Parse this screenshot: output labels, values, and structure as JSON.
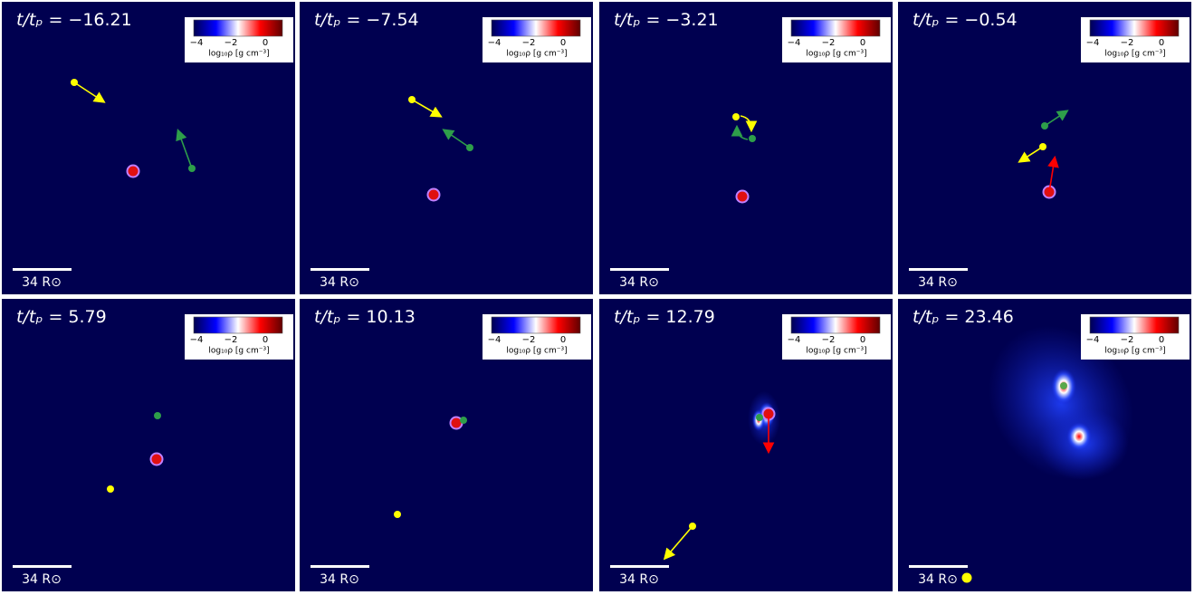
{
  "figure": {
    "time_variable": "t/tₚ =",
    "panels": [
      {
        "time": "−16.21"
      },
      {
        "time": "−7.54"
      },
      {
        "time": "−3.21"
      },
      {
        "time": "−0.54"
      },
      {
        "time": "5.79"
      },
      {
        "time": "10.13"
      },
      {
        "time": "12.79"
      },
      {
        "time": "23.46"
      }
    ],
    "colorbar": {
      "ticks": [
        "−4",
        "−2",
        "0"
      ],
      "label": "log₁₀ρ [g cm⁻³]"
    },
    "scale_bar": "34 R⊙"
  }
}
